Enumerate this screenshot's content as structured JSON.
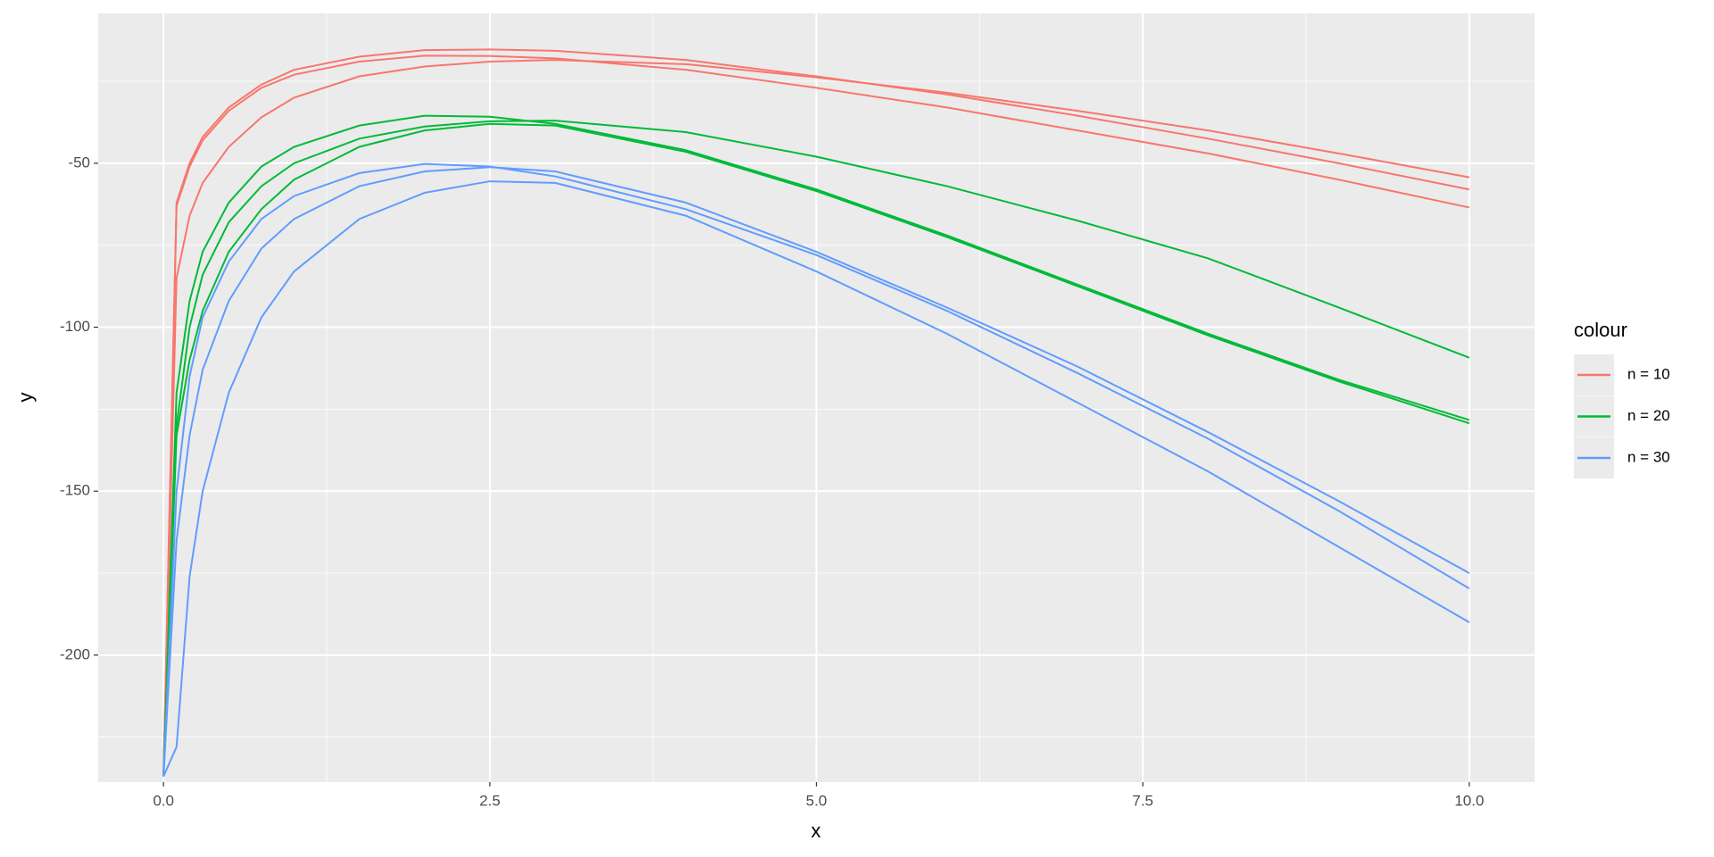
{
  "chart_data": {
    "type": "line",
    "x_label": "x",
    "y_label": "y",
    "legend_title": "colour",
    "legend_position": "right",
    "x": [
      0,
      0.1,
      0.2,
      0.3,
      0.5,
      0.75,
      1,
      1.5,
      2,
      2.5,
      3,
      4,
      5,
      6,
      7,
      8,
      9,
      10
    ],
    "series": [
      {
        "name": "n = 10",
        "color": "#F8766D",
        "values": [
          [
            -237,
            -85,
            -66,
            -56,
            -45,
            -36,
            -30,
            -23.5,
            -20.5,
            -19,
            -18.5,
            -19.8,
            -23.8,
            -28.5,
            -34,
            -40,
            -47,
            -54.3
          ],
          [
            -237,
            -62,
            -50,
            -42,
            -33,
            -26,
            -21.5,
            -17.5,
            -15.5,
            -15.3,
            -15.7,
            -18.5,
            -23.5,
            -29,
            -35.5,
            -42.5,
            -50,
            -58
          ],
          [
            -237,
            -63,
            -51,
            -43,
            -34,
            -27,
            -23,
            -19,
            -17.2,
            -17.3,
            -18,
            -21.5,
            -27,
            -33,
            -40,
            -47,
            -55,
            -63.5
          ]
        ]
      },
      {
        "name": "n = 20",
        "color": "#00BA38",
        "values": [
          [
            -237,
            -120,
            -92,
            -77,
            -62,
            -51,
            -45,
            -38.5,
            -35.5,
            -35.8,
            -38,
            -46,
            -58,
            -72,
            -87,
            -102,
            -116,
            -128.3
          ],
          [
            -237,
            -130,
            -100,
            -84,
            -68,
            -57,
            -50,
            -42.5,
            -38.8,
            -37.2,
            -37,
            -40.5,
            -48,
            -57,
            -67.5,
            -79,
            -94,
            -109.3
          ],
          [
            -237,
            -133,
            -110,
            -95,
            -77,
            -64,
            -55,
            -45,
            -40,
            -38,
            -38.5,
            -46.5,
            -58.5,
            -72.5,
            -87.5,
            -102.5,
            -116.5,
            -129.3
          ]
        ]
      },
      {
        "name": "n = 30",
        "color": "#619CFF",
        "values": [
          [
            -237,
            -150,
            -115,
            -97,
            -80,
            -67,
            -60,
            -53,
            -50.2,
            -51,
            -54,
            -64,
            -78,
            -95,
            -114,
            -134,
            -156,
            -179.7
          ],
          [
            -237,
            -165,
            -133,
            -113,
            -92,
            -76,
            -67,
            -57,
            -52.5,
            -51.2,
            -52.5,
            -62,
            -77,
            -94,
            -112,
            -132,
            -153,
            -175
          ],
          [
            -237,
            -228,
            -176,
            -150,
            -120,
            -97,
            -83,
            -67,
            -59,
            -55.5,
            -56,
            -66,
            -83,
            -102,
            -123,
            -144,
            -167,
            -190
          ]
        ]
      }
    ],
    "xlim": [
      -0.5,
      10.5
    ],
    "ylim": [
      -238.7,
      -4.3
    ],
    "xticks": [
      {
        "value": 0,
        "label": "0.0"
      },
      2.5,
      {
        "value": 5,
        "label": "5.0"
      },
      7.5,
      {
        "value": 10,
        "label": "10.0"
      }
    ],
    "yticks": [
      -200,
      -150,
      -100,
      -50
    ],
    "x_minor_ticks": [
      1.25,
      3.75,
      6.25,
      8.75
    ],
    "y_minor_ticks": [
      -225,
      -175,
      -125,
      -75,
      -25
    ],
    "grid": true
  }
}
